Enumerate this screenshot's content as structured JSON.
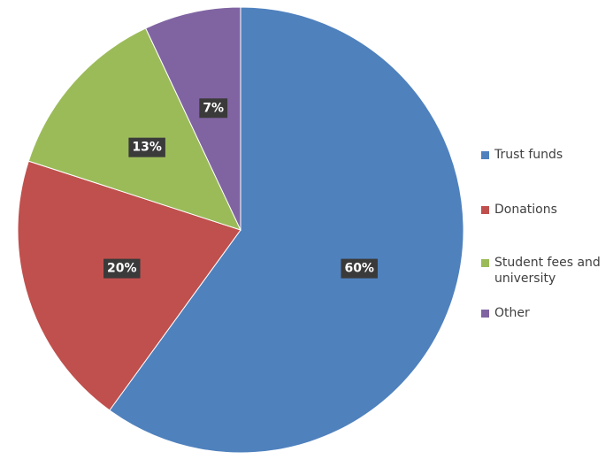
{
  "chart_data": {
    "type": "pie",
    "title": "",
    "start_angle_deg": 0,
    "direction": "clockwise",
    "legend_position": "right",
    "slices": [
      {
        "name": "Trust funds",
        "value": 60,
        "label": "60%",
        "color": "#4f81bd"
      },
      {
        "name": "Donations",
        "value": 20,
        "label": "20%",
        "color": "#c0504d"
      },
      {
        "name": "Student fees and university",
        "value": 13,
        "label": "13%",
        "color": "#9bbb59"
      },
      {
        "name": "Other",
        "value": 7,
        "label": "7%",
        "color": "#8064a2"
      }
    ],
    "label_box_color": "#3a3a3a"
  }
}
